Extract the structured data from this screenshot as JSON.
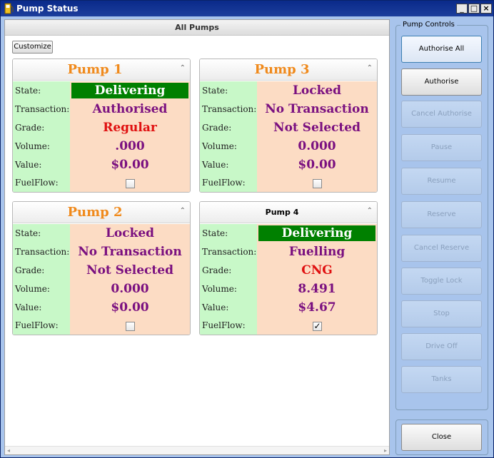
{
  "window": {
    "title": "Pump Status"
  },
  "main": {
    "header": "All Pumps",
    "customize_label": "Customize"
  },
  "field_labels": {
    "state": "State:",
    "transaction": "Transaction:",
    "grade": "Grade:",
    "volume": "Volume:",
    "value": "Value:",
    "fuelflow": "FuelFlow:"
  },
  "pumps": [
    {
      "name": "Pump 1",
      "state": "Delivering",
      "transaction": "Authorised",
      "grade": "Regular",
      "volume": ".000",
      "value": "$0.00",
      "fuelflow_checked": false
    },
    {
      "name": "Pump 3",
      "state": "Locked",
      "transaction": "No Transaction",
      "grade": "Not Selected",
      "volume": "0.000",
      "value": "$0.00",
      "fuelflow_checked": false
    },
    {
      "name": "Pump 2",
      "state": "Locked",
      "transaction": "No Transaction",
      "grade": "Not Selected",
      "volume": "0.000",
      "value": "$0.00",
      "fuelflow_checked": false
    },
    {
      "name": "Pump 4",
      "state": "Delivering",
      "transaction": "Fuelling",
      "grade": "CNG",
      "volume": "8.491",
      "value": "$4.67",
      "fuelflow_checked": true
    }
  ],
  "controls": {
    "legend": "Pump Controls",
    "buttons": [
      {
        "label": "Authorise All",
        "enabled": true
      },
      {
        "label": "Authorise",
        "enabled": true
      },
      {
        "label": "Cancel Authorise",
        "enabled": false
      },
      {
        "label": "Pause",
        "enabled": false
      },
      {
        "label": "Resume",
        "enabled": false
      },
      {
        "label": "Reserve",
        "enabled": false
      },
      {
        "label": "Cancel Reserve",
        "enabled": false
      },
      {
        "label": "Toggle Lock",
        "enabled": false
      },
      {
        "label": "Stop",
        "enabled": false
      },
      {
        "label": "Drive Off",
        "enabled": false
      },
      {
        "label": "Tanks",
        "enabled": false
      }
    ],
    "close_label": "Close"
  },
  "colors": {
    "pump_title": "#f08a1c",
    "label_bg": "#c8f8c8",
    "value_bg": "#fcdcc4",
    "delivering_bg": "#008000",
    "purple_text": "#7a1080",
    "red_text": "#e01010"
  }
}
